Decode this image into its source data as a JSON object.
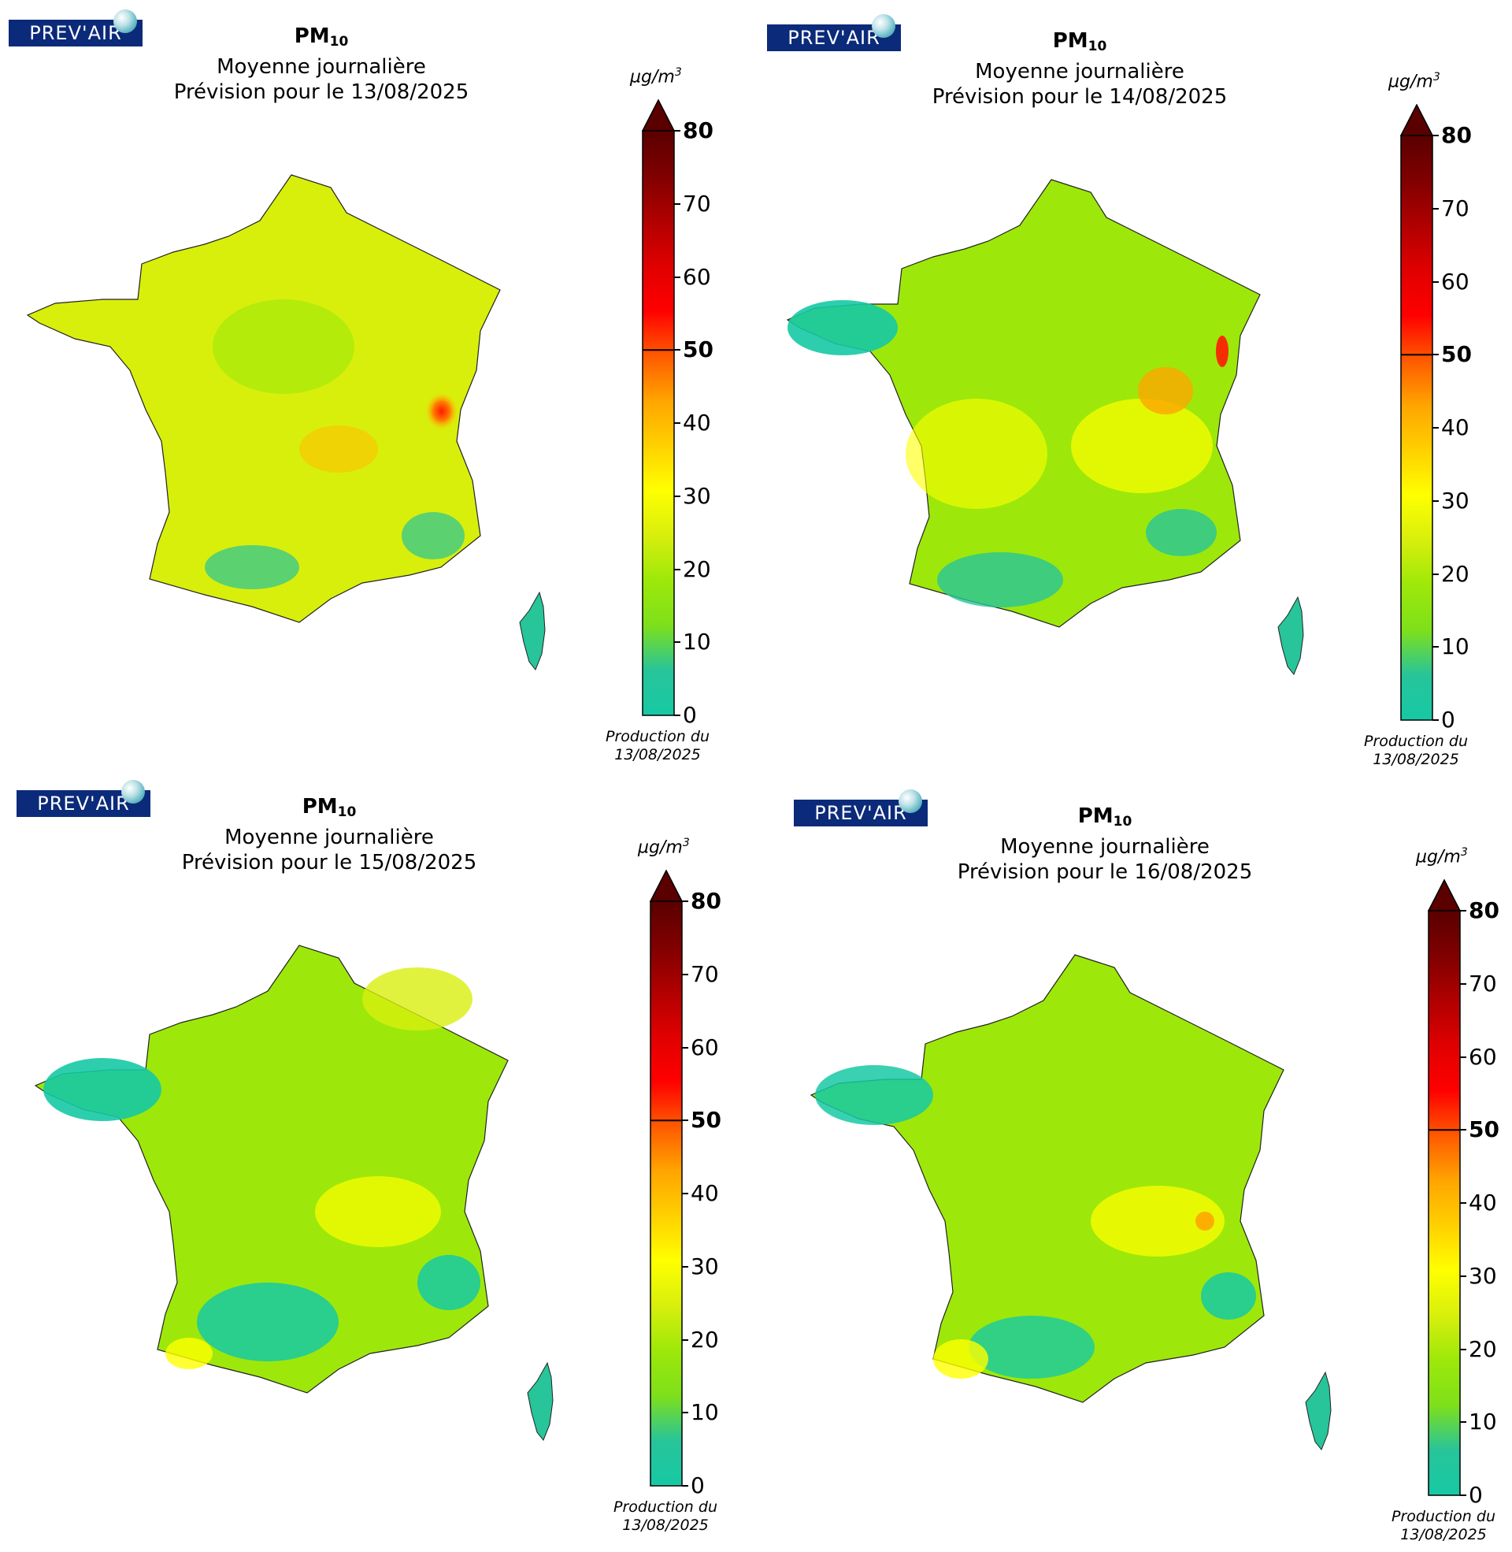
{
  "logo_text": "PREV'AIR",
  "pm_label": "PM",
  "pm_subscript": "10",
  "subtitle": "Moyenne journalière",
  "unit_base": "µg/m",
  "unit_exp": "3",
  "production_line1": "Production du",
  "production_line2": "13/08/2025",
  "colorbar": {
    "ticks": [
      "0",
      "10",
      "20",
      "30",
      "40",
      "50",
      "60",
      "70",
      "80"
    ],
    "bold_ticks": [
      "50",
      "80"
    ],
    "min": 0,
    "max": 80,
    "colors": [
      "#16c9a4",
      "#28c49a",
      "#7ee01a",
      "#9de80a",
      "#d8ef0c",
      "#ffff00",
      "#ffd000",
      "#ffa500",
      "#ff5a00",
      "#ff0000",
      "#e00000",
      "#b00000",
      "#800000",
      "#5a0000"
    ]
  },
  "maps": [
    {
      "forecast": "Prévision pour le 13/08/2025"
    },
    {
      "forecast": "Prévision pour le 14/08/2025"
    },
    {
      "forecast": "Prévision pour le 15/08/2025"
    },
    {
      "forecast": "Prévision pour le 16/08/2025"
    }
  ]
}
